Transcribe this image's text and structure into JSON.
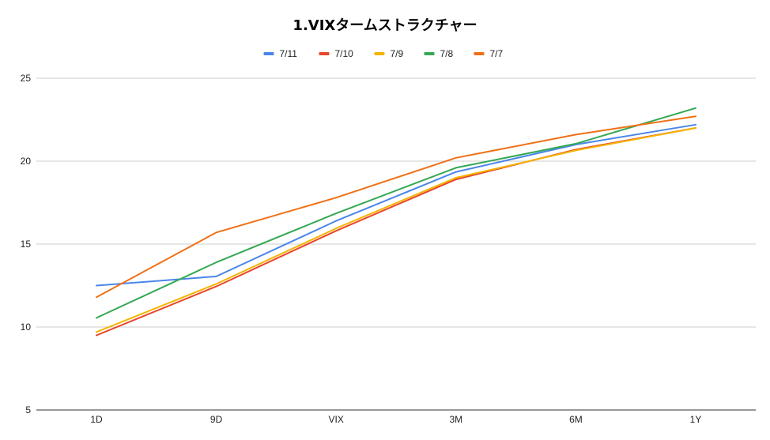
{
  "chart_data": {
    "type": "line",
    "title": "1.VIXタームストラクチャー",
    "xlabel": "",
    "ylabel": "",
    "categories": [
      "1D",
      "9D",
      "VIX",
      "3M",
      "6M",
      "1Y"
    ],
    "ylim": [
      5,
      25
    ],
    "yticks": [
      5,
      10,
      15,
      20,
      25
    ],
    "grid": true,
    "legend_position": "top",
    "series": [
      {
        "name": "7/11",
        "color": "#4a86e8",
        "values": [
          12.5,
          13.05,
          16.4,
          19.35,
          21.0,
          22.2
        ]
      },
      {
        "name": "7/10",
        "color": "#e8462b",
        "values": [
          9.5,
          12.45,
          15.8,
          18.9,
          20.7,
          22.0
        ]
      },
      {
        "name": "7/9",
        "color": "#f4b400",
        "values": [
          9.7,
          12.6,
          15.95,
          19.0,
          20.65,
          22.0
        ]
      },
      {
        "name": "7/8",
        "color": "#34a853",
        "values": [
          10.55,
          13.9,
          16.85,
          19.6,
          21.05,
          23.2
        ]
      },
      {
        "name": "7/7",
        "color": "#f07016",
        "values": [
          11.8,
          15.7,
          17.8,
          20.2,
          21.6,
          22.7
        ]
      }
    ]
  }
}
